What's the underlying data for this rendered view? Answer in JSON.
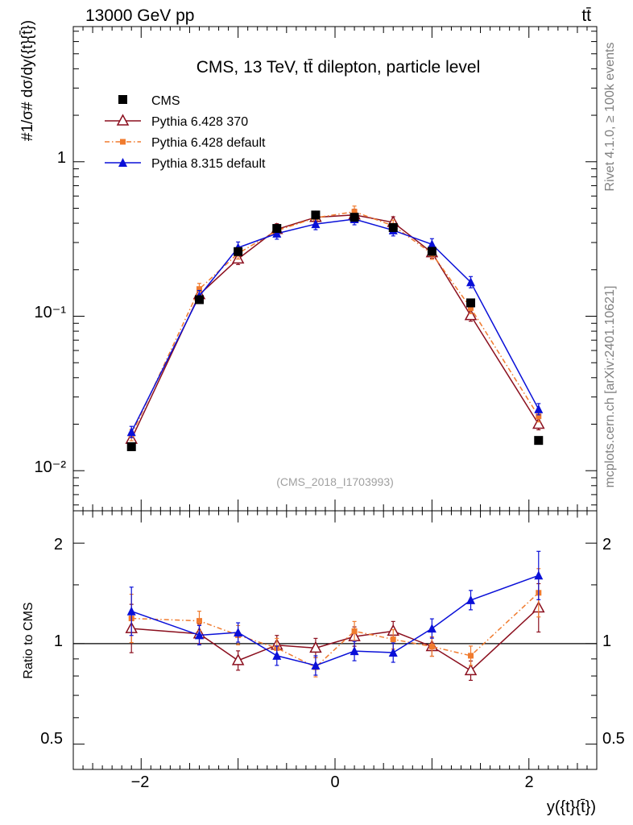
{
  "header": {
    "left": "13000 GeV pp",
    "right": "tt̄"
  },
  "side_labels": {
    "rivet": "Rivet 4.1.0, ≥ 100k events",
    "mcplots": "mcplots.cern.ch [arXiv:2401.10621]"
  },
  "main_plot": {
    "title": "CMS, 13 TeV, tt̄ dilepton, particle level",
    "ylabel": "#1/σ# dσ/dy({t}{t̄})",
    "watermark": "(CMS_2018_I1703993)",
    "ytick_labels": [
      "10⁻²",
      "10⁻¹",
      "1"
    ]
  },
  "ratio_plot": {
    "ylabel": "Ratio to CMS",
    "ytick_labels": [
      "0.5",
      "1",
      "2"
    ]
  },
  "xaxis": {
    "label": "y({t}{t̄})",
    "tick_labels": [
      "−2",
      "0",
      "2"
    ]
  },
  "colors": {
    "cms": "#000000",
    "py6_370": "#8b0f1e",
    "py6_default": "#f07b2e",
    "py8": "#0a10d8"
  },
  "chart_data": [
    {
      "type": "line",
      "title": "CMS, 13 TeV, tt̄ dilepton, particle level",
      "xlabel": "y({t}{t̄})",
      "ylabel": "#1/σ# dσ/dy({t}{t̄})",
      "yscale": "log",
      "xlim": [
        -2.7,
        2.7
      ],
      "ylim": [
        0.0055,
        7.5
      ],
      "legend": "top-left",
      "x": [
        -2.1,
        -1.4,
        -1.0,
        -0.6,
        -0.2,
        0.2,
        0.6,
        1.0,
        1.4,
        2.1
      ],
      "series": [
        {
          "name": "CMS",
          "marker": "square",
          "values": [
            0.0143,
            0.128,
            0.262,
            0.37,
            0.452,
            0.437,
            0.375,
            0.263,
            0.122,
            0.0157
          ]
        },
        {
          "name": "Pythia 6.428 370",
          "marker": "triangle-open",
          "values": [
            0.016,
            0.138,
            0.235,
            0.365,
            0.437,
            0.453,
            0.405,
            0.258,
            0.101,
            0.02
          ]
        },
        {
          "name": "Pythia 6.428 default",
          "marker": "square-small",
          "values": [
            0.017,
            0.15,
            0.255,
            0.358,
            0.434,
            0.475,
            0.385,
            0.254,
            0.113,
            0.0225
          ]
        },
        {
          "name": "Pythia 8.315 default",
          "marker": "triangle",
          "values": [
            0.0178,
            0.135,
            0.278,
            0.343,
            0.395,
            0.425,
            0.36,
            0.292,
            0.166,
            0.025
          ]
        }
      ]
    },
    {
      "type": "line",
      "title": "",
      "xlabel": "y({t}{t̄})",
      "ylabel": "Ratio to CMS",
      "xlim": [
        -2.7,
        2.7
      ],
      "ylim": [
        0.42,
        2.5
      ],
      "yscale": "log",
      "reference_line": 1,
      "x": [
        -2.1,
        -1.4,
        -1.0,
        -0.6,
        -0.2,
        0.2,
        0.6,
        1.0,
        1.4,
        2.1
      ],
      "series": [
        {
          "name": "Pythia 6.428 370",
          "values": [
            1.11,
            1.07,
            0.89,
            0.99,
            0.97,
            1.05,
            1.09,
            0.98,
            0.83,
            1.28
          ]
        },
        {
          "name": "Pythia 6.428 default",
          "values": [
            1.19,
            1.17,
            1.06,
            0.97,
            0.85,
            1.09,
            1.03,
            0.98,
            0.92,
            1.42
          ]
        },
        {
          "name": "Pythia 8.315 default",
          "values": [
            1.25,
            1.06,
            1.08,
            0.92,
            0.86,
            0.95,
            0.94,
            1.11,
            1.35,
            1.6
          ]
        }
      ]
    }
  ]
}
